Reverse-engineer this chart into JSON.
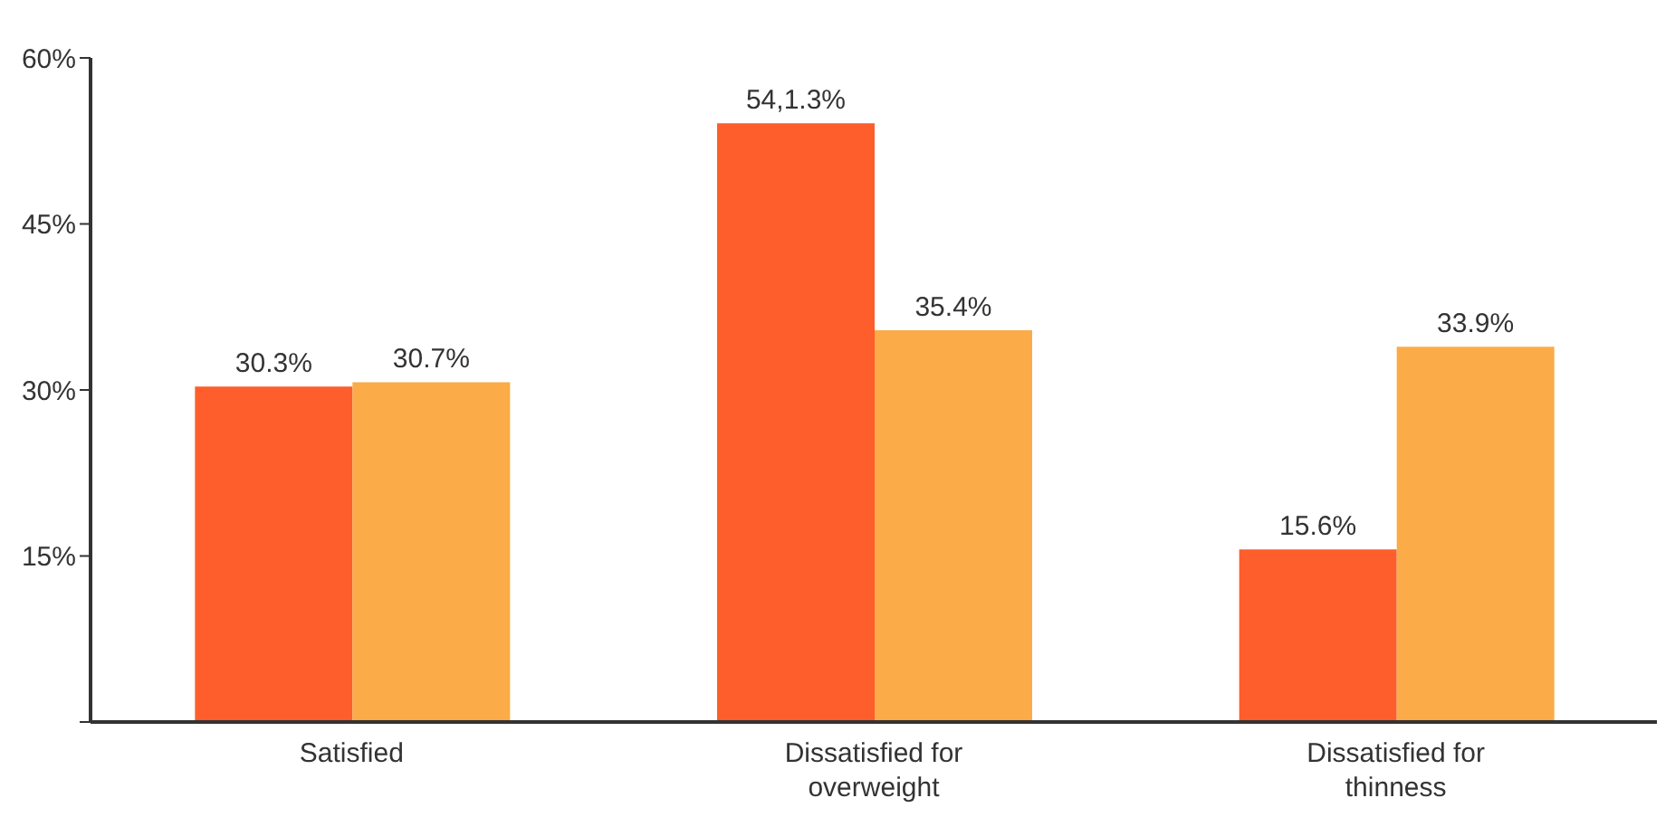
{
  "chart_data": {
    "type": "bar",
    "categories": [
      "Satisfied",
      "Dissatisfied for overweight",
      "Dissatisfied for thinness"
    ],
    "series": [
      {
        "color": "#fd5e2c",
        "values": [
          30.3,
          54.1,
          15.6
        ],
        "value_labels": [
          "30.3%",
          "54,1.3%",
          "15.6%"
        ]
      },
      {
        "color": "#fbab47",
        "values": [
          30.7,
          35.4,
          33.9
        ],
        "value_labels": [
          "30.7%",
          "35.4%",
          "33.9%"
        ]
      }
    ],
    "ylim": [
      0,
      60
    ],
    "yticks": [
      {
        "value": 0,
        "label": null
      },
      {
        "value": 15,
        "label": "15%"
      },
      {
        "value": 30,
        "label": "30%"
      },
      {
        "value": 45,
        "label": "45%"
      },
      {
        "value": 60,
        "label": "60%"
      }
    ],
    "grid": false,
    "legend": false
  }
}
